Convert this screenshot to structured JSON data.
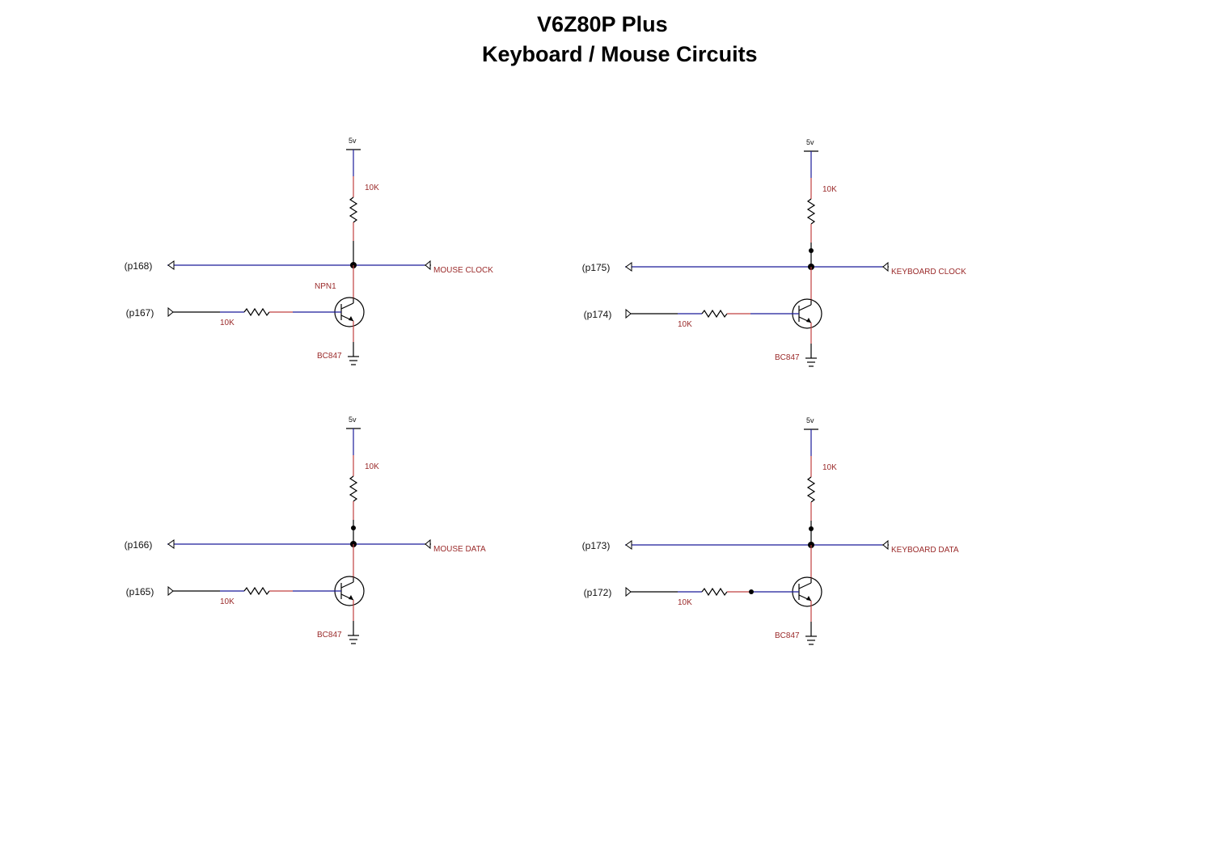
{
  "title": "V6Z80P Plus",
  "subtitle": "Keyboard / Mouse Circuits",
  "colors": {
    "wire_blue": "#1a1a99",
    "wire_red": "#c04040",
    "label_red": "#9a2a2a",
    "black": "#000000"
  },
  "circuits": [
    {
      "supply": "5v",
      "pullup": "10K",
      "port_line": "(p168)",
      "port_drive": "(p167)",
      "signal": "MOUSE CLOCK",
      "base_resistor": "10K",
      "transistor_ref": "NPN1",
      "transistor_part": "BC847"
    },
    {
      "supply": "5v",
      "pullup": "10K",
      "port_line": "(p175)",
      "port_drive": "(p174)",
      "signal": "KEYBOARD CLOCK",
      "base_resistor": "10K",
      "transistor_ref": "",
      "transistor_part": "BC847"
    },
    {
      "supply": "5v",
      "pullup": "10K",
      "port_line": "(p166)",
      "port_drive": "(p165)",
      "signal": "MOUSE DATA",
      "base_resistor": "10K",
      "transistor_ref": "",
      "transistor_part": "BC847"
    },
    {
      "supply": "5v",
      "pullup": "10K",
      "port_line": "(p173)",
      "port_drive": "(p172)",
      "signal": "KEYBOARD DATA",
      "base_resistor": "10K",
      "transistor_ref": "",
      "transistor_part": "BC847"
    }
  ]
}
